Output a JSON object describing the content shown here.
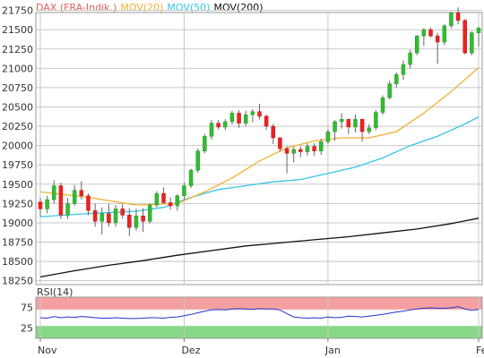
{
  "colors": {
    "up_candle": "#33bb33",
    "down_candle": "#ee2222",
    "candle_outline": "#666666",
    "ma20": "#f0b030",
    "ma50": "#33c6e8",
    "ma200": "#111111",
    "rsi_line": "#2233cc",
    "overbought_zone": "#f4a0a0",
    "oversold_zone": "#88d888",
    "grid": "#c8c8c8"
  },
  "chart_data": [
    {
      "type": "candlestick",
      "title": "",
      "legend": [
        {
          "label": "DAX (FRA-Indik.)",
          "color": "#e06060"
        },
        {
          "label": "MOV(20)",
          "color": "#f0b030"
        },
        {
          "label": "MOV(50)",
          "color": "#33c6e8"
        },
        {
          "label": "MOV(200)",
          "color": "#111111"
        }
      ],
      "ylim": [
        18200,
        21850
      ],
      "y_ticks": [
        18250,
        18500,
        18750,
        19000,
        19250,
        19500,
        19750,
        20000,
        20250,
        20500,
        20750,
        21000,
        21250,
        21500,
        21750
      ],
      "x_ticks": [
        {
          "label": "Nov",
          "index": 0
        },
        {
          "label": "Dez",
          "index": 21
        },
        {
          "label": "Jan",
          "index": 42
        },
        {
          "label": "Fe",
          "index": 64
        }
      ],
      "candles": [
        [
          19270,
          19320,
          19080,
          19180
        ],
        [
          19180,
          19350,
          19120,
          19300
        ],
        [
          19300,
          19550,
          19250,
          19480
        ],
        [
          19480,
          19520,
          19050,
          19100
        ],
        [
          19100,
          19320,
          19050,
          19250
        ],
        [
          19250,
          19490,
          19220,
          19420
        ],
        [
          19420,
          19540,
          19300,
          19350
        ],
        [
          19350,
          19380,
          19100,
          19160
        ],
        [
          19160,
          19250,
          18950,
          19020
        ],
        [
          19020,
          19200,
          18850,
          19120
        ],
        [
          19120,
          19250,
          18950,
          19000
        ],
        [
          19000,
          19230,
          18950,
          19180
        ],
        [
          19180,
          19250,
          19050,
          19100
        ],
        [
          19100,
          19190,
          18830,
          18940
        ],
        [
          18940,
          19180,
          18900,
          19090
        ],
        [
          19090,
          19190,
          18880,
          19020
        ],
        [
          19020,
          19250,
          18990,
          19230
        ],
        [
          19230,
          19410,
          19200,
          19380
        ],
        [
          19380,
          19460,
          19250,
          19260
        ],
        [
          19260,
          19330,
          19170,
          19220
        ],
        [
          19220,
          19370,
          19160,
          19350
        ],
        [
          19350,
          19520,
          19300,
          19480
        ],
        [
          19480,
          19700,
          19450,
          19680
        ],
        [
          19680,
          19960,
          19650,
          19930
        ],
        [
          19930,
          20150,
          19900,
          20120
        ],
        [
          20120,
          20330,
          20080,
          20290
        ],
        [
          20290,
          20330,
          20210,
          20240
        ],
        [
          20240,
          20340,
          20200,
          20310
        ],
        [
          20310,
          20450,
          20270,
          20420
        ],
        [
          20420,
          20460,
          20230,
          20290
        ],
        [
          20290,
          20450,
          20250,
          20400
        ],
        [
          20400,
          20470,
          20300,
          20440
        ],
        [
          20440,
          20540,
          20340,
          20380
        ],
        [
          20380,
          20400,
          20200,
          20250
        ],
        [
          20250,
          20280,
          20020,
          20100
        ],
        [
          20100,
          20110,
          19920,
          19960
        ],
        [
          19960,
          19990,
          19640,
          19900
        ],
        [
          19900,
          19980,
          19780,
          19950
        ],
        [
          19950,
          19990,
          19850,
          19920
        ],
        [
          19920,
          20030,
          19870,
          19990
        ],
        [
          19990,
          20030,
          19870,
          19930
        ],
        [
          19930,
          20090,
          19880,
          20050
        ],
        [
          20050,
          20210,
          20020,
          20180
        ],
        [
          20180,
          20330,
          20060,
          20310
        ],
        [
          20310,
          20420,
          20220,
          20340
        ],
        [
          20340,
          20350,
          20150,
          20240
        ],
        [
          20240,
          20400,
          20170,
          20340
        ],
        [
          20340,
          20350,
          20050,
          20180
        ],
        [
          20180,
          20280,
          20150,
          20230
        ],
        [
          20230,
          20460,
          20200,
          20430
        ],
        [
          20430,
          20650,
          20400,
          20620
        ],
        [
          20620,
          20840,
          20600,
          20800
        ],
        [
          20800,
          20950,
          20750,
          20920
        ],
        [
          20920,
          21100,
          20850,
          21050
        ],
        [
          21050,
          21240,
          21000,
          21200
        ],
        [
          21200,
          21430,
          21170,
          21420
        ],
        [
          21420,
          21520,
          21290,
          21500
        ],
        [
          21500,
          21530,
          21400,
          21420
        ],
        [
          21420,
          21460,
          21060,
          21340
        ],
        [
          21340,
          21570,
          21300,
          21550
        ],
        [
          21550,
          21730,
          21520,
          21720
        ],
        [
          21720,
          21790,
          21570,
          21620
        ],
        [
          21620,
          21640,
          21180,
          21200
        ],
        [
          21200,
          21480,
          21170,
          21460
        ],
        [
          21460,
          21540,
          21280,
          21520
        ]
      ],
      "ma20": [
        [
          0,
          19400
        ],
        [
          7,
          19330
        ],
        [
          14,
          19230
        ],
        [
          20,
          19250
        ],
        [
          24,
          19400
        ],
        [
          28,
          19580
        ],
        [
          32,
          19800
        ],
        [
          36,
          19970
        ],
        [
          40,
          20060
        ],
        [
          44,
          20100
        ],
        [
          48,
          20100
        ],
        [
          52,
          20180
        ],
        [
          56,
          20420
        ],
        [
          60,
          20700
        ],
        [
          64,
          21010
        ]
      ],
      "ma50": [
        [
          0,
          19080
        ],
        [
          7,
          19120
        ],
        [
          14,
          19150
        ],
        [
          18,
          19200
        ],
        [
          22,
          19330
        ],
        [
          26,
          19430
        ],
        [
          30,
          19480
        ],
        [
          34,
          19530
        ],
        [
          38,
          19560
        ],
        [
          42,
          19640
        ],
        [
          46,
          19720
        ],
        [
          50,
          19840
        ],
        [
          54,
          20000
        ],
        [
          58,
          20120
        ],
        [
          62,
          20280
        ],
        [
          64,
          20370
        ]
      ],
      "ma200": [
        [
          0,
          18300
        ],
        [
          5,
          18380
        ],
        [
          10,
          18450
        ],
        [
          15,
          18510
        ],
        [
          20,
          18580
        ],
        [
          25,
          18640
        ],
        [
          30,
          18700
        ],
        [
          35,
          18740
        ],
        [
          40,
          18780
        ],
        [
          45,
          18820
        ],
        [
          50,
          18870
        ],
        [
          55,
          18920
        ],
        [
          60,
          18990
        ],
        [
          64,
          19060
        ]
      ]
    },
    {
      "type": "line",
      "title": "RSI(14)",
      "ylim": [
        0,
        100
      ],
      "y_ticks": [
        25,
        75
      ],
      "zones": {
        "oversold": [
          0,
          30
        ],
        "overbought": [
          70,
          100
        ]
      },
      "values": [
        50,
        49,
        53,
        50,
        52,
        51,
        53,
        52,
        50,
        49,
        49,
        50,
        49,
        48,
        48,
        49,
        50,
        50,
        49,
        51,
        52,
        55,
        58,
        62,
        66,
        69,
        70,
        69,
        71,
        72,
        71,
        70,
        72,
        71,
        71,
        69,
        60,
        52,
        50,
        49,
        50,
        49,
        52,
        50,
        51,
        54,
        53,
        52,
        54,
        56,
        58,
        61,
        64,
        66,
        69,
        71,
        73,
        74,
        73,
        73,
        74,
        77,
        71,
        68,
        70
      ]
    }
  ]
}
